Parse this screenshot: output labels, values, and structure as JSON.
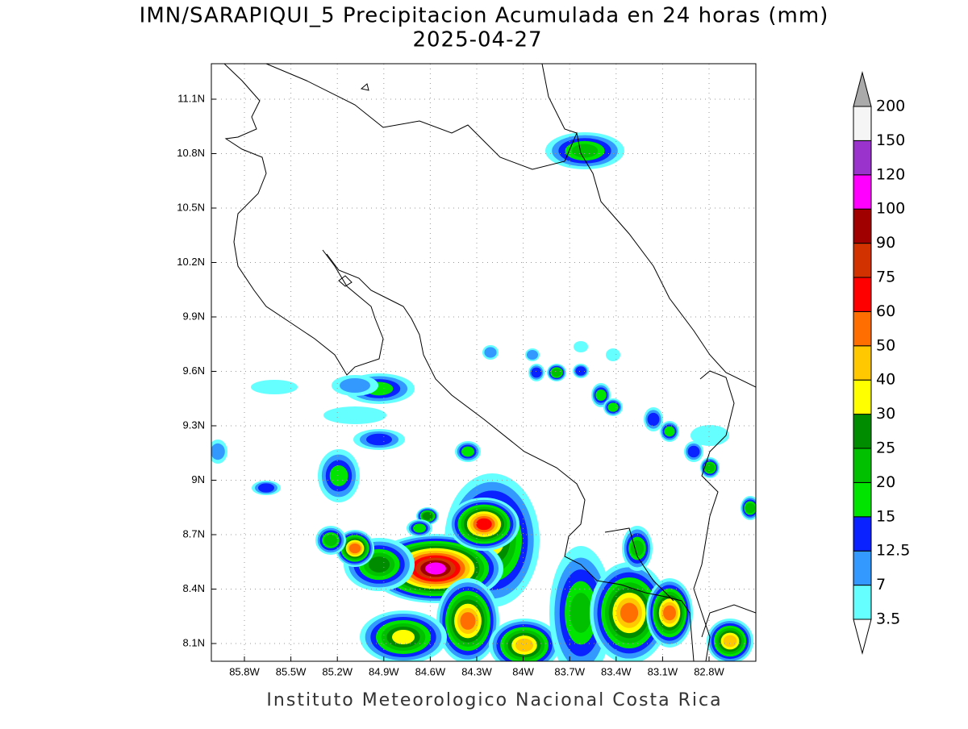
{
  "header": {
    "title": "IMN/SARAPIQUI_5 Precipitacion Acumulada en 24 horas (mm)",
    "date": "2025-04-27"
  },
  "map": {
    "lat_labels": [
      "11.1N",
      "10.8N",
      "10.5N",
      "10.2N",
      "9.9N",
      "9.6N",
      "9.3N",
      "9N",
      "8.7N",
      "8.4N",
      "8.1N"
    ],
    "lon_labels": [
      "85.8W",
      "85.5W",
      "85.2W",
      "84.9W",
      "84.6W",
      "84.3W",
      "84W",
      "83.7W",
      "83.4W",
      "83.1W",
      "82.8W"
    ]
  },
  "colorbar": {
    "labels": [
      "3.5",
      "7",
      "12.5",
      "15",
      "20",
      "25",
      "30",
      "40",
      "50",
      "60",
      "75",
      "90",
      "100",
      "120",
      "150",
      "200"
    ],
    "colors": [
      "#66ffff",
      "#3399ff",
      "#0a22ff",
      "#00e400",
      "#00c000",
      "#008c00",
      "#ffff00",
      "#ffc800",
      "#ff6e00",
      "#ff0000",
      "#d23200",
      "#a00000",
      "#ff00ff",
      "#9933cc",
      "#f5f5f5"
    ]
  },
  "footer": "Instituto Meteorologico Nacional Costa Rica"
}
